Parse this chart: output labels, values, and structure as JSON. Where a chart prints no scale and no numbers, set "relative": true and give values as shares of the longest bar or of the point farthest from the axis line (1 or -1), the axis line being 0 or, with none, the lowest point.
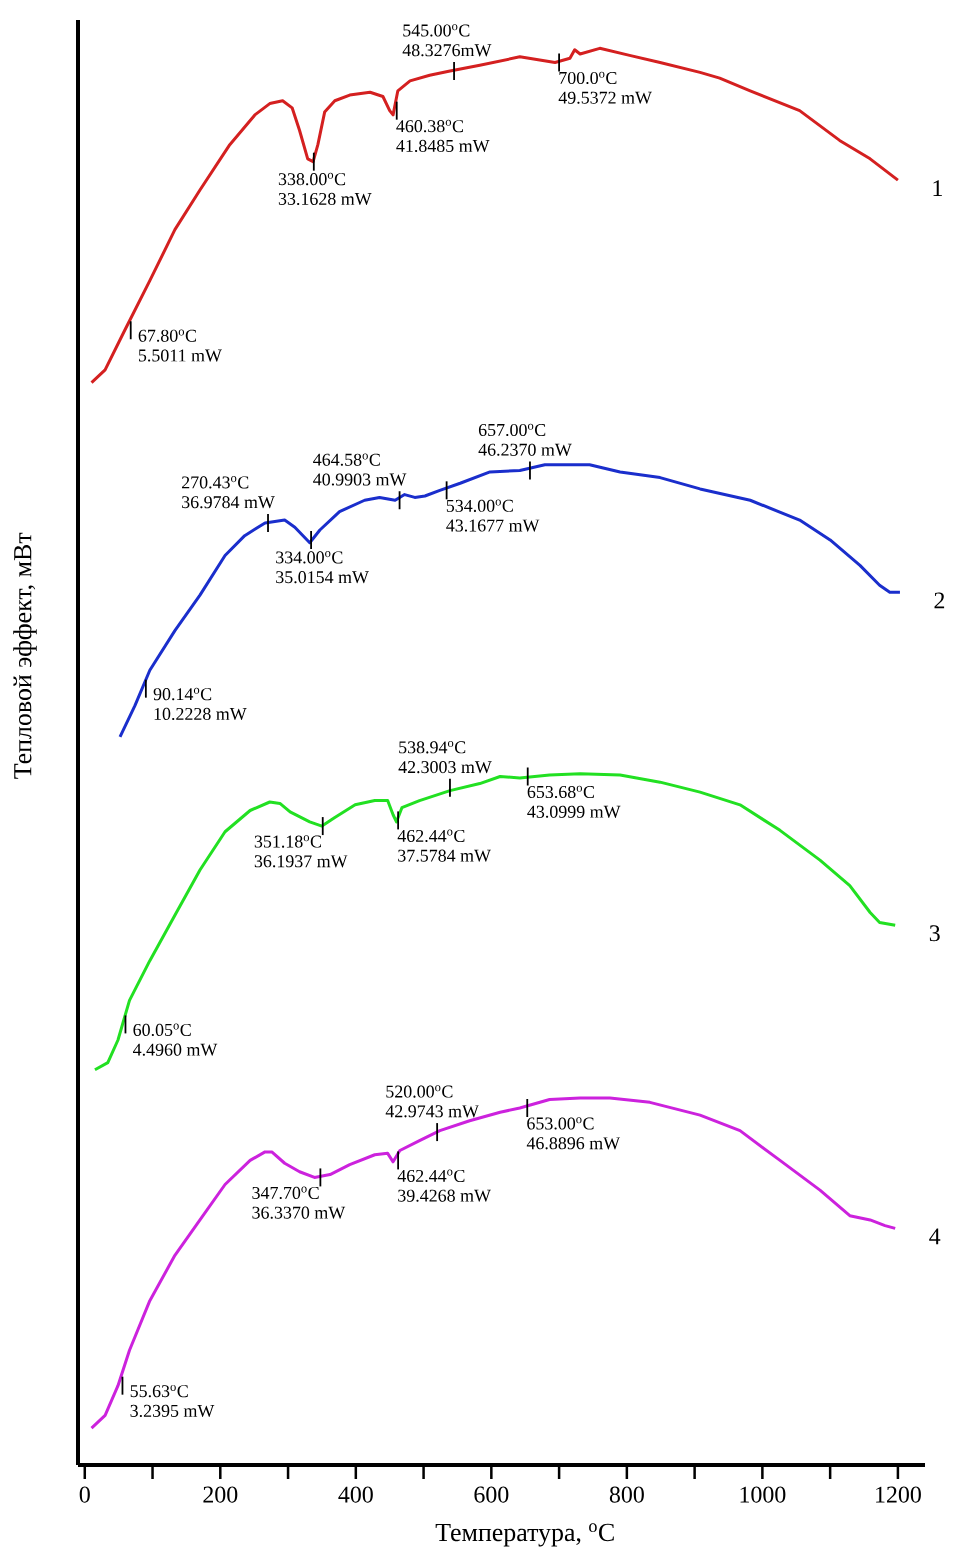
{
  "chart_data": {
    "type": "line",
    "relative": true,
    "xlabel": "Температура, $^{o}$C",
    "ylabel": "Тепловой эффект, мВт",
    "xlim": [
      -10,
      1240
    ],
    "xticks": [
      0,
      {
        "value": 100,
        "label": null
      },
      200,
      {
        "value": 300,
        "label": null
      },
      400,
      {
        "value": 500,
        "label": null
      },
      600,
      {
        "value": 700,
        "label": null
      },
      800,
      {
        "value": 900,
        "label": null
      },
      1000,
      {
        "value": 1100,
        "label": null
      },
      1200
    ],
    "series": [
      {
        "name": "1",
        "color": "#d42020",
        "x": [
          10,
          30,
          59,
          96,
          133,
          170,
          214,
          251,
          273,
          292,
          306,
          317,
          329,
          337,
          344,
          354,
          369,
          391,
          421,
          440,
          450,
          455,
          462,
          480,
          509,
          539,
          583,
          642,
          694,
          716,
          723,
          731,
          760,
          804,
          849,
          908,
          937,
          982,
          1055,
          1114,
          1159,
          1200
        ],
        "values": [
          0.764,
          0.773,
          0.801,
          0.836,
          0.872,
          0.9,
          0.932,
          0.953,
          0.961,
          0.963,
          0.958,
          0.942,
          0.922,
          0.92,
          0.932,
          0.955,
          0.963,
          0.967,
          0.969,
          0.966,
          0.956,
          0.953,
          0.97,
          0.977,
          0.981,
          0.984,
          0.988,
          0.994,
          0.99,
          0.993,
          0.999,
          0.996,
          1.0,
          0.995,
          0.99,
          0.983,
          0.979,
          0.97,
          0.956,
          0.935,
          0.922,
          0.907
        ]
      },
      {
        "name": "2",
        "color": "#1a2ecc",
        "x": [
          52,
          74,
          96,
          133,
          170,
          207,
          236,
          266,
          295,
          310,
          332,
          347,
          376,
          413,
          435,
          458,
          472,
          487,
          502,
          524,
          554,
          598,
          642,
          679,
          701,
          745,
          790,
          849,
          908,
          982,
          1055,
          1100,
          1144,
          1173,
          1188,
          1203
        ],
        "values": [
          0.514,
          0.536,
          0.561,
          0.589,
          0.614,
          0.642,
          0.656,
          0.665,
          0.667,
          0.662,
          0.651,
          0.66,
          0.673,
          0.681,
          0.683,
          0.681,
          0.685,
          0.683,
          0.684,
          0.688,
          0.693,
          0.701,
          0.702,
          0.706,
          0.706,
          0.706,
          0.701,
          0.697,
          0.689,
          0.681,
          0.667,
          0.653,
          0.635,
          0.621,
          0.616,
          0.616
        ]
      },
      {
        "name": "3",
        "color": "#22e022",
        "x": [
          15,
          34,
          49,
          66,
          96,
          133,
          170,
          207,
          244,
          273,
          288,
          303,
          332,
          350,
          369,
          399,
          428,
          447,
          455,
          460,
          468,
          494,
          539,
          583,
          613,
          642,
          686,
          731,
          790,
          849,
          908,
          967,
          1026,
          1085,
          1129,
          1159,
          1173,
          1196
        ],
        "values": [
          0.279,
          0.284,
          0.3,
          0.328,
          0.356,
          0.388,
          0.42,
          0.447,
          0.462,
          0.468,
          0.467,
          0.461,
          0.454,
          0.451,
          0.457,
          0.466,
          0.469,
          0.469,
          0.459,
          0.454,
          0.464,
          0.469,
          0.476,
          0.481,
          0.486,
          0.485,
          0.487,
          0.488,
          0.487,
          0.482,
          0.475,
          0.466,
          0.448,
          0.427,
          0.409,
          0.39,
          0.383,
          0.381
        ]
      },
      {
        "name": "4",
        "color": "#cc22dd",
        "x": [
          10,
          30,
          49,
          66,
          96,
          133,
          170,
          207,
          244,
          266,
          276,
          295,
          317,
          339,
          362,
          391,
          428,
          447,
          455,
          465,
          494,
          524,
          568,
          613,
          642,
          686,
          731,
          775,
          834,
          908,
          967,
          1026,
          1085,
          1129,
          1159,
          1181,
          1196
        ],
        "values": [
          0.026,
          0.035,
          0.056,
          0.081,
          0.116,
          0.148,
          0.173,
          0.198,
          0.215,
          0.221,
          0.221,
          0.213,
          0.207,
          0.203,
          0.205,
          0.212,
          0.219,
          0.22,
          0.214,
          0.222,
          0.229,
          0.236,
          0.243,
          0.249,
          0.252,
          0.258,
          0.259,
          0.259,
          0.256,
          0.247,
          0.236,
          0.215,
          0.194,
          0.176,
          0.173,
          0.169,
          0.167
        ]
      }
    ],
    "annotations": [
      {
        "text": "67.80$^{o}$C",
        "x": 67.8,
        "y": 0.801
      },
      {
        "text": "5.5011 mW",
        "x": 67.8,
        "y": 0.801
      },
      {
        "text": "338.00$^{o}$C",
        "x": 338,
        "y": 0.92
      },
      {
        "text": "33.1628 mW",
        "x": 338,
        "y": 0.92
      },
      {
        "text": "460.38$^{o}$C",
        "x": 460.38,
        "y": 0.956
      },
      {
        "text": "41.8485 mW",
        "x": 460.38,
        "y": 0.956
      },
      {
        "text": "545.00$^{o}$C",
        "x": 545,
        "y": 0.984
      },
      {
        "text": "48.3276mW",
        "x": 545,
        "y": 0.984
      },
      {
        "text": "700.0$^{o}$C",
        "x": 700,
        "y": 0.99
      },
      {
        "text": "49.5372 mW",
        "x": 700,
        "y": 0.99
      },
      {
        "text": "90.14$^{o}$C",
        "x": 90.14,
        "y": 0.548
      },
      {
        "text": "10.2228 mW",
        "x": 90.14,
        "y": 0.548
      },
      {
        "text": "270.43$^{o}$C",
        "x": 270.43,
        "y": 0.665
      },
      {
        "text": "36.9784 mW",
        "x": 270.43,
        "y": 0.665
      },
      {
        "text": "334.00$^{o}$C",
        "x": 334,
        "y": 0.653
      },
      {
        "text": "35.0154 mW",
        "x": 334,
        "y": 0.653
      },
      {
        "text": "464.58$^{o}$C",
        "x": 464.58,
        "y": 0.681
      },
      {
        "text": "40.9903 mW",
        "x": 464.58,
        "y": 0.681
      },
      {
        "text": "534.00$^{o}$C",
        "x": 534,
        "y": 0.688
      },
      {
        "text": "43.1677 mW",
        "x": 534,
        "y": 0.688
      },
      {
        "text": "657.00$^{o}$C",
        "x": 657,
        "y": 0.702
      },
      {
        "text": "46.2370 mW",
        "x": 657,
        "y": 0.702
      },
      {
        "text": "60.05$^{o}$C",
        "x": 60.05,
        "y": 0.311
      },
      {
        "text": "4.4960 mW",
        "x": 60.05,
        "y": 0.311
      },
      {
        "text": "351.18$^{o}$C",
        "x": 351.18,
        "y": 0.451
      },
      {
        "text": "36.1937 mW",
        "x": 351.18,
        "y": 0.451
      },
      {
        "text": "462.44$^{o}$C",
        "x": 462.44,
        "y": 0.455
      },
      {
        "text": "37.5784 mW",
        "x": 462.44,
        "y": 0.455
      },
      {
        "text": "538.94$^{o}$C",
        "x": 538.94,
        "y": 0.478
      },
      {
        "text": "42.3003 mW",
        "x": 538.94,
        "y": 0.478
      },
      {
        "text": "653.68$^{o}$C",
        "x": 653.68,
        "y": 0.486
      },
      {
        "text": "43.0999 mW",
        "x": 653.68,
        "y": 0.486
      },
      {
        "text": "55.63$^{o}$C",
        "x": 55.63,
        "y": 0.056
      },
      {
        "text": "3.2395 mW",
        "x": 55.63,
        "y": 0.056
      },
      {
        "text": "347.70$^{o}$C",
        "x": 347.7,
        "y": 0.203
      },
      {
        "text": "36.3370 mW",
        "x": 347.7,
        "y": 0.203
      },
      {
        "text": "462.44$^{o}$C",
        "x": 462.44,
        "y": 0.215
      },
      {
        "text": "39.4268 mW",
        "x": 462.44,
        "y": 0.215
      },
      {
        "text": "520.00$^{o}$C",
        "x": 520,
        "y": 0.235
      },
      {
        "text": "42.9743 mW",
        "x": 520,
        "y": 0.235
      },
      {
        "text": "653.00$^{o}$C",
        "x": 653,
        "y": 0.252
      },
      {
        "text": "46.8896 mW",
        "x": 653,
        "y": 0.252
      }
    ]
  }
}
